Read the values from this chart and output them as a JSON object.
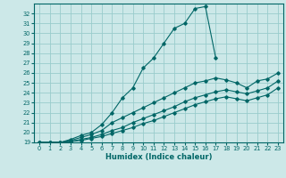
{
  "xlabel": "Humidex (Indice chaleur)",
  "background_color": "#cce8e8",
  "grid_color": "#99cccc",
  "line_color": "#006666",
  "xlim": [
    -0.5,
    23.5
  ],
  "ylim": [
    19,
    33
  ],
  "yticks": [
    19,
    20,
    21,
    22,
    23,
    24,
    25,
    26,
    27,
    28,
    29,
    30,
    31,
    32
  ],
  "xticks": [
    0,
    1,
    2,
    3,
    4,
    5,
    6,
    7,
    8,
    9,
    10,
    11,
    12,
    13,
    14,
    15,
    16,
    17,
    18,
    19,
    20,
    21,
    22,
    23
  ],
  "series": [
    {
      "x": [
        0,
        1,
        2,
        3,
        4,
        5,
        6,
        7,
        8,
        9,
        10,
        11,
        12,
        13,
        14,
        15,
        16,
        17
      ],
      "y": [
        19,
        19,
        19,
        19.3,
        19.7,
        20.0,
        20.8,
        22.0,
        23.5,
        24.5,
        26.5,
        27.5,
        29.0,
        30.5,
        31.0,
        32.5,
        32.7,
        27.5
      ]
    },
    {
      "x": [
        0,
        1,
        2,
        3,
        4,
        5,
        6,
        7,
        8,
        9,
        10,
        11,
        12,
        13,
        14,
        15,
        16,
        17,
        18,
        19,
        20,
        21,
        22,
        23
      ],
      "y": [
        19,
        19,
        19,
        19.2,
        19.5,
        19.8,
        20.2,
        21.0,
        21.5,
        22.0,
        22.5,
        23.0,
        23.5,
        24.0,
        24.5,
        25.0,
        25.2,
        25.5,
        25.3,
        25.0,
        24.5,
        25.2,
        25.4,
        26.0
      ]
    },
    {
      "x": [
        0,
        1,
        2,
        3,
        4,
        5,
        6,
        7,
        8,
        9,
        10,
        11,
        12,
        13,
        14,
        15,
        16,
        17,
        18,
        19,
        20,
        21,
        22,
        23
      ],
      "y": [
        19,
        19,
        19,
        19.1,
        19.3,
        19.5,
        19.8,
        20.2,
        20.5,
        21.0,
        21.4,
        21.8,
        22.2,
        22.6,
        23.1,
        23.5,
        23.8,
        24.1,
        24.3,
        24.1,
        23.9,
        24.2,
        24.5,
        25.2
      ]
    },
    {
      "x": [
        0,
        1,
        2,
        3,
        4,
        5,
        6,
        7,
        8,
        9,
        10,
        11,
        12,
        13,
        14,
        15,
        16,
        17,
        18,
        19,
        20,
        21,
        22,
        23
      ],
      "y": [
        19,
        19,
        19,
        19.1,
        19.2,
        19.4,
        19.6,
        19.9,
        20.2,
        20.5,
        20.9,
        21.2,
        21.6,
        22.0,
        22.4,
        22.8,
        23.1,
        23.4,
        23.6,
        23.4,
        23.2,
        23.5,
        23.8,
        24.5
      ]
    }
  ]
}
